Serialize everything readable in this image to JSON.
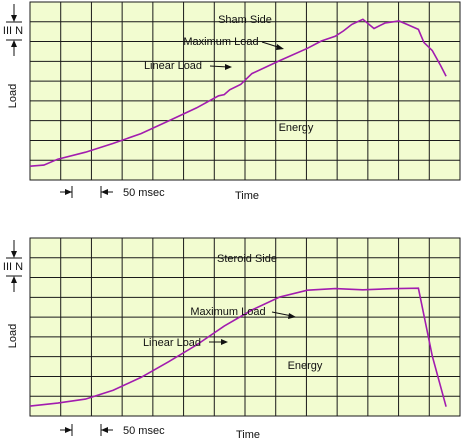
{
  "colors": {
    "grid_bg": "#f2fcd0",
    "grid_line": "#1a1a1a",
    "trace": "#a21caf",
    "text": "#111111"
  },
  "chart_data": [
    {
      "type": "line",
      "title": "",
      "panel_label": "Sham Side",
      "xlabel": "Time",
      "ylabel": "Load",
      "scale_y_label": "III N",
      "scale_x_label": "50 msec",
      "annotations": [
        "Maximum Load",
        "Linear Load",
        "Energy"
      ],
      "x_divisions": 14,
      "y_divisions": 9,
      "grid": true,
      "series": [
        {
          "x": [
            0,
            0.5,
            1,
            2,
            3,
            4,
            5,
            6,
            6.8,
            7,
            7.2,
            7.6,
            8,
            9,
            10,
            10.5,
            11,
            11.3,
            11.6,
            12,
            12.4,
            12.8,
            13,
            13.3,
            13.6,
            14,
            14.2,
            14.5,
            14.8,
            15
          ],
          "y": [
            0.7,
            0.7,
            1.0,
            1.4,
            1.9,
            2.4,
            3.0,
            3.6,
            4.2,
            4.3,
            4.6,
            4.9,
            5.4,
            6.0,
            6.6,
            7.0,
            7.3,
            7.6,
            7.9,
            8.1,
            7.6,
            7.9,
            8.0,
            8.1,
            7.9,
            7.6,
            6.9,
            6.5,
            5.8,
            5.3
          ],
          "name": ""
        }
      ]
    },
    {
      "type": "line",
      "title": "",
      "panel_label": "Steroid Side",
      "xlabel": "Time",
      "ylabel": "Load",
      "scale_y_label": "III N",
      "scale_x_label": "50 msec",
      "annotations": [
        "Maximum Load",
        "Linear Load",
        "Energy"
      ],
      "x_divisions": 14,
      "y_divisions": 9,
      "grid": true,
      "series": [
        {
          "x": [
            0,
            1,
            2,
            3,
            4,
            5,
            6,
            7,
            8,
            9,
            10,
            11,
            12,
            13,
            14,
            14.5,
            15
          ],
          "y": [
            0.5,
            0.6,
            0.8,
            1.3,
            2.0,
            2.8,
            3.6,
            4.5,
            5.3,
            6.0,
            6.4,
            6.5,
            6.4,
            6.4,
            6.4,
            3.0,
            0.5
          ],
          "name": ""
        }
      ]
    }
  ]
}
